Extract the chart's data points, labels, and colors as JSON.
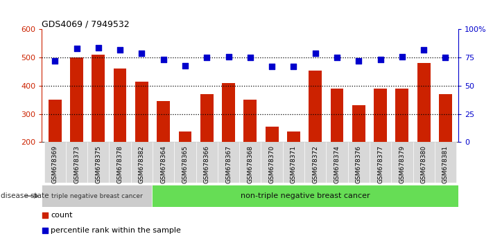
{
  "title": "GDS4069 / 7949532",
  "samples": [
    "GSM678369",
    "GSM678373",
    "GSM678375",
    "GSM678378",
    "GSM678382",
    "GSM678364",
    "GSM678365",
    "GSM678366",
    "GSM678367",
    "GSM678368",
    "GSM678370",
    "GSM678371",
    "GSM678372",
    "GSM678374",
    "GSM678376",
    "GSM678377",
    "GSM678379",
    "GSM678380",
    "GSM678381"
  ],
  "counts": [
    350,
    500,
    510,
    460,
    415,
    345,
    238,
    370,
    410,
    350,
    255,
    238,
    455,
    390,
    330,
    390,
    390,
    480,
    370
  ],
  "percentiles": [
    72,
    83,
    84,
    82,
    79,
    73,
    68,
    75,
    76,
    75,
    67,
    67,
    79,
    75,
    72,
    73,
    76,
    82,
    75
  ],
  "triple_neg_count": 5,
  "non_triple_neg_count": 14,
  "group1_label": "triple negative breast cancer",
  "group2_label": "non-triple negative breast cancer",
  "disease_state_label": "disease state",
  "legend_count": "count",
  "legend_percentile": "percentile rank within the sample",
  "ylim_left": [
    200,
    600
  ],
  "ylim_right": [
    0,
    100
  ],
  "yticks_left": [
    200,
    300,
    400,
    500,
    600
  ],
  "yticks_right": [
    0,
    25,
    50,
    75,
    100
  ],
  "bar_color": "#cc2200",
  "dot_color": "#0000cc",
  "bg_xticklabel": "#d8d8d8",
  "title_color": "#000000",
  "left_axis_color": "#cc2200",
  "right_axis_color": "#0000cc",
  "group1_bg": "#cccccc",
  "group2_bg": "#66dd55"
}
